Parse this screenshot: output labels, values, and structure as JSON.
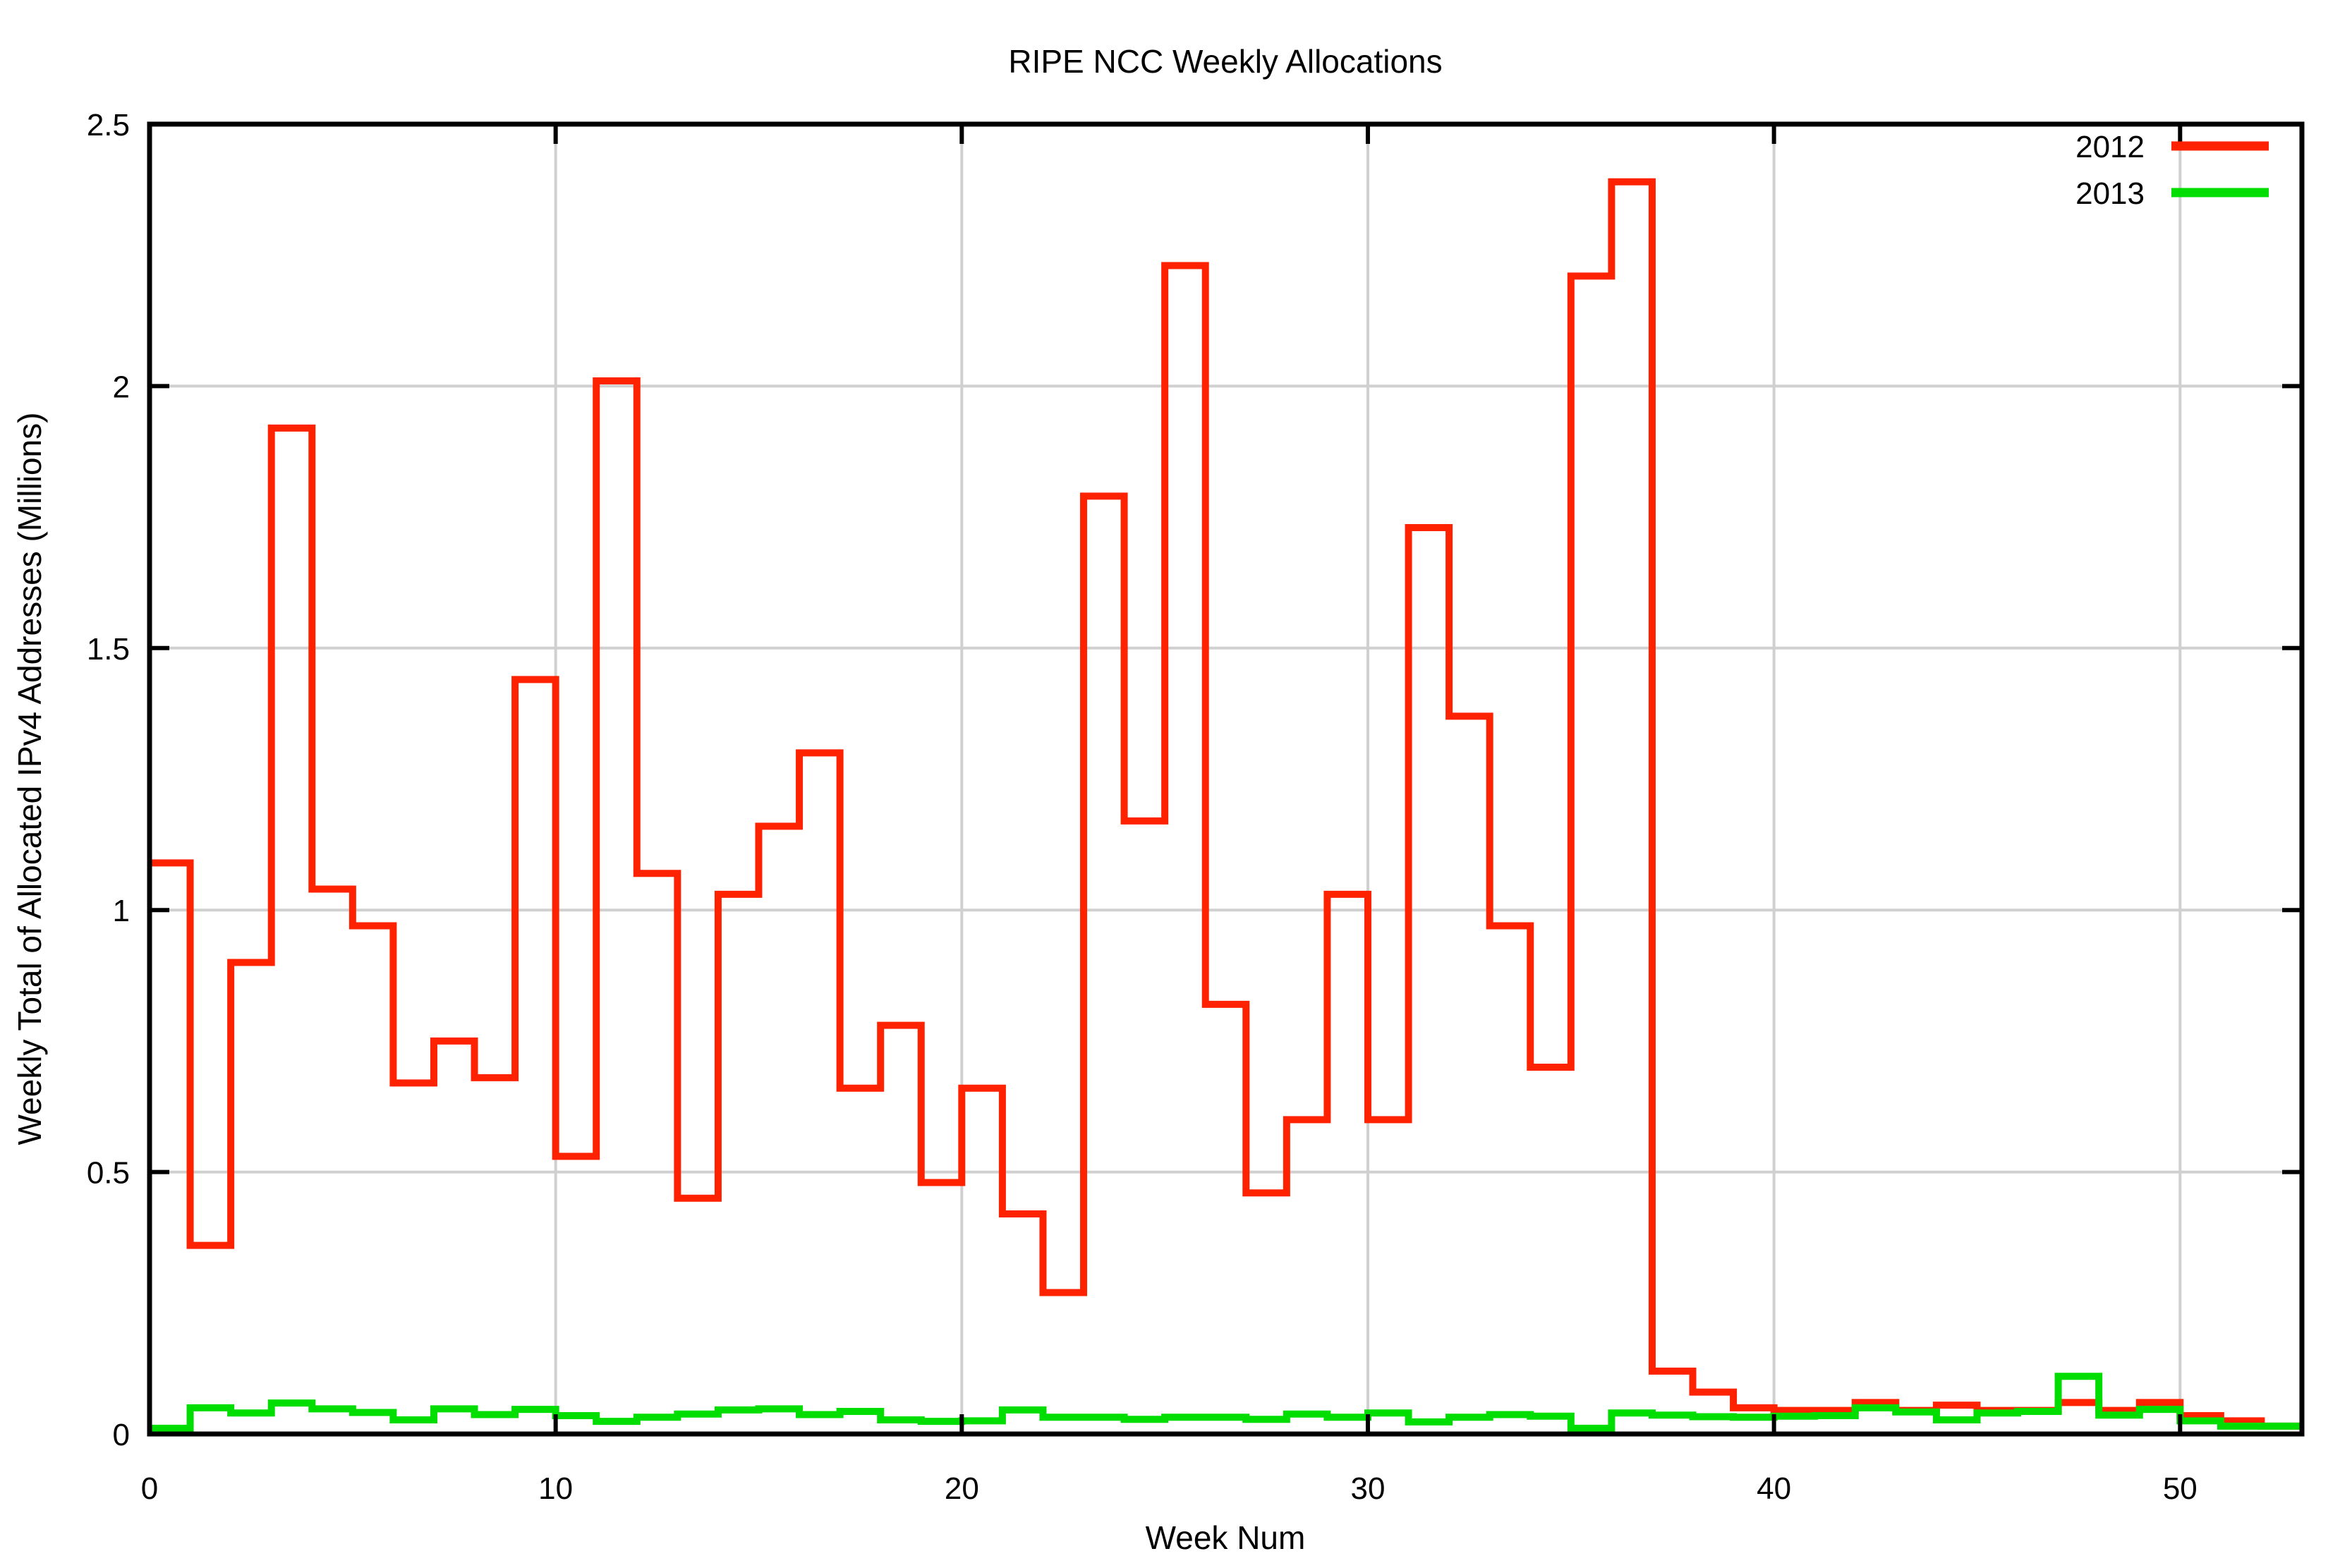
{
  "chart_data": {
    "type": "step",
    "title": "RIPE NCC Weekly Allocations",
    "xlabel": "Week Num",
    "ylabel": "Weekly Total of Allocated IPv4 Addresses (Millions)",
    "xlim": [
      0,
      53
    ],
    "ylim": [
      0,
      2.5
    ],
    "grid": true,
    "legend_position": "top-right",
    "xticks": [
      {
        "value": 0,
        "label": "0"
      },
      {
        "value": 10,
        "label": "10"
      },
      {
        "value": 20,
        "label": "20"
      },
      {
        "value": 30,
        "label": "30"
      },
      {
        "value": 40,
        "label": "40"
      },
      {
        "value": 50,
        "label": "50"
      }
    ],
    "yticks": [
      {
        "value": 0,
        "label": "0"
      },
      {
        "value": 0.5,
        "label": "0.5"
      },
      {
        "value": 1,
        "label": "1"
      },
      {
        "value": 1.5,
        "label": "1.5"
      },
      {
        "value": 2,
        "label": "2"
      },
      {
        "value": 2.5,
        "label": "2.5"
      }
    ],
    "x_description": "Each value covers one week: value at index i spans week i to i+1",
    "series": [
      {
        "name": "2012",
        "color": "#ff2200",
        "values": [
          1.09,
          0.36,
          0.9,
          1.92,
          1.04,
          0.97,
          0.67,
          0.75,
          0.68,
          1.44,
          0.53,
          2.01,
          1.07,
          0.45,
          1.03,
          1.16,
          1.3,
          0.66,
          0.78,
          0.48,
          0.66,
          0.42,
          0.27,
          1.79,
          1.17,
          2.23,
          0.82,
          0.46,
          0.6,
          1.03,
          0.6,
          1.73,
          1.37,
          0.97,
          0.7,
          2.21,
          2.39,
          0.12,
          0.08,
          0.05,
          0.045,
          0.045,
          0.06,
          0.045,
          0.055,
          0.045,
          0.045,
          0.06,
          0.045,
          0.06,
          0.035,
          0.025,
          0.015
        ]
      },
      {
        "name": "2013",
        "color": "#00dd00",
        "values": [
          0.011,
          0.05,
          0.04,
          0.059,
          0.048,
          0.041,
          0.027,
          0.048,
          0.037,
          0.047,
          0.035,
          0.024,
          0.032,
          0.038,
          0.046,
          0.048,
          0.037,
          0.043,
          0.027,
          0.024,
          0.025,
          0.046,
          0.032,
          0.032,
          0.028,
          0.032,
          0.032,
          0.028,
          0.038,
          0.032,
          0.04,
          0.023,
          0.032,
          0.037,
          0.034,
          0.011,
          0.04,
          0.036,
          0.033,
          0.032,
          0.034,
          0.035,
          0.05,
          0.042,
          0.027,
          0.04,
          0.043,
          0.11,
          0.036,
          0.047,
          0.025,
          0.015,
          0.015
        ]
      }
    ]
  },
  "colors": {
    "background": "#ffffff",
    "plot_border": "#000000",
    "grid": "#d0d0d0",
    "text": "#000000",
    "series_2012": "#ff2200",
    "series_2013": "#00dd00"
  }
}
